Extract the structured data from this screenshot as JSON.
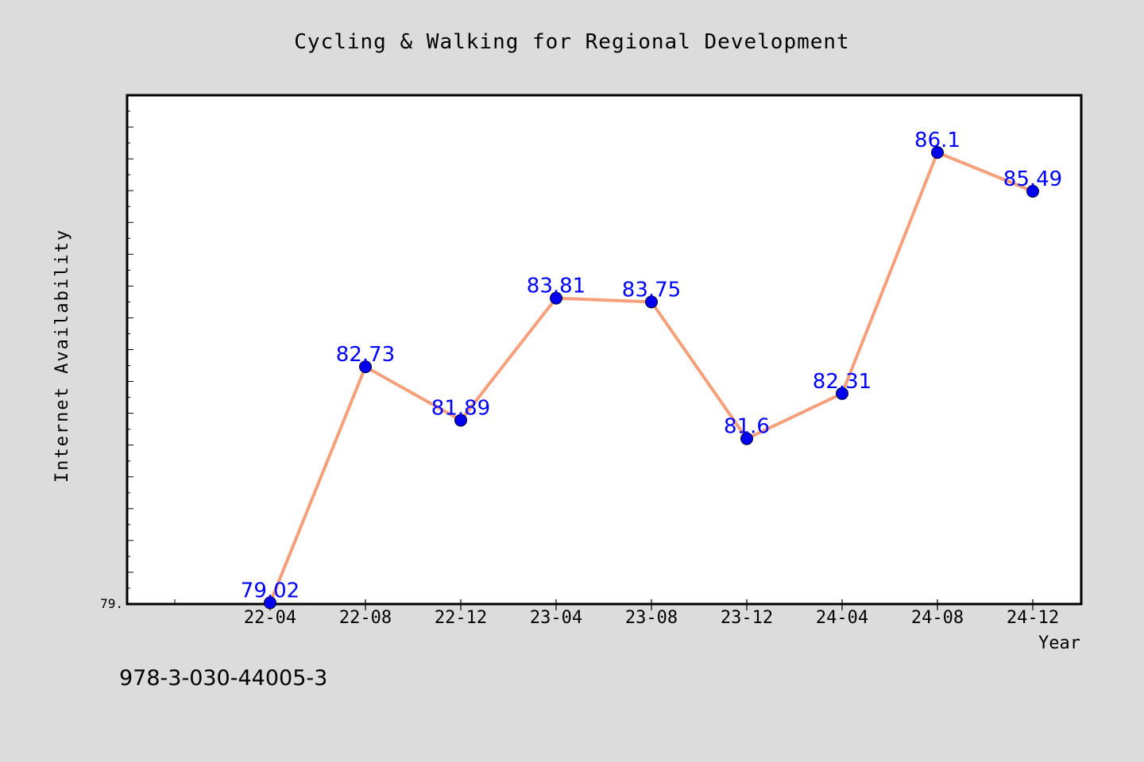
{
  "chart_data": {
    "type": "line",
    "title": "Cycling & Walking for Regional Development",
    "xlabel": "Year",
    "ylabel": "Internet Availability",
    "categories": [
      "22-04",
      "22-08",
      "22-12",
      "23-04",
      "23-08",
      "23-12",
      "24-04",
      "24-08",
      "24-12"
    ],
    "values": [
      79.02,
      82.73,
      81.89,
      83.81,
      83.75,
      81.6,
      82.31,
      86.1,
      85.49
    ],
    "data_labels": [
      "79.02",
      "82.73",
      "81.89",
      "83.81",
      "83.75",
      "81.6",
      "82.31",
      "86.1",
      "85.49"
    ],
    "y_tick_label": "79.",
    "ylim": [
      79.0,
      87.0
    ],
    "grid": false,
    "line_color": "#f5a07a",
    "marker_color": "#0000ee",
    "label_color": "#0000ff"
  },
  "footer": {
    "isbn": "978-3-030-44005-3"
  }
}
